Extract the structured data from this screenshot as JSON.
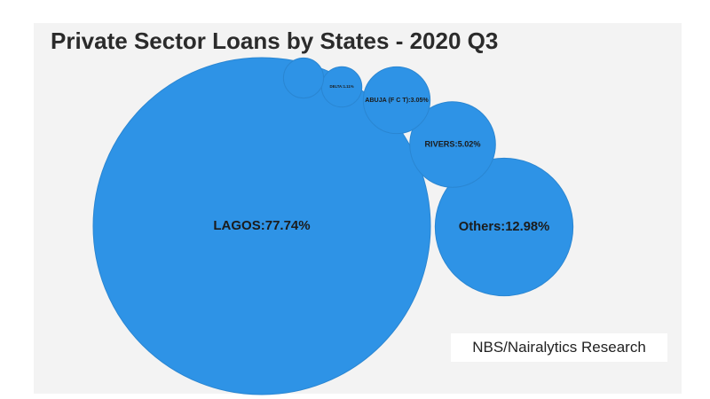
{
  "chart_data": {
    "type": "bubble",
    "title": "Private Sector Loans by States - 2020 Q3",
    "labels": [
      "LAGOS:77.74%",
      "Others:12.98%",
      "RIVERS:5.02%",
      "ABUJA (F C T):3.05%",
      "DELTA:1.11%",
      null
    ],
    "values": [
      77.74,
      12.98,
      5.02,
      3.05,
      1.11,
      1.1
    ],
    "color": "#2e93e6",
    "source": "NBS/Nairalytics Research"
  }
}
